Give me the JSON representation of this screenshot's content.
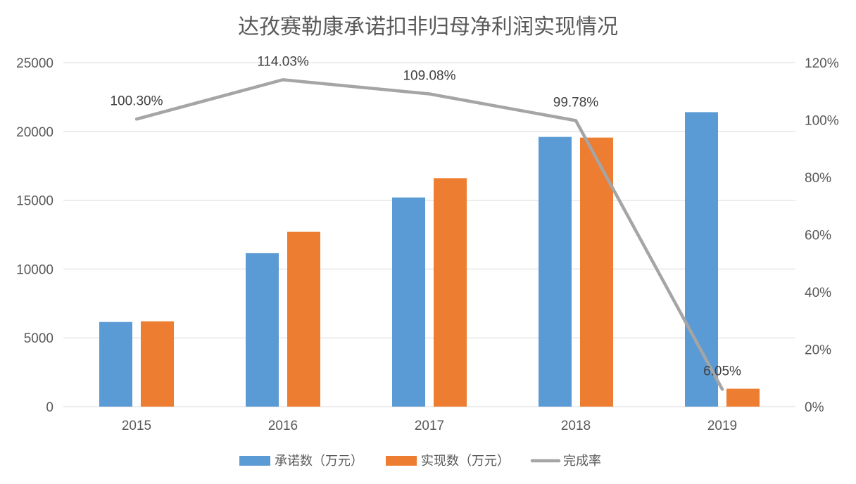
{
  "chart_data": {
    "type": "bar",
    "title": "达孜赛勒康承诺扣非归母净利润实现情况",
    "categories": [
      "2015",
      "2016",
      "2017",
      "2018",
      "2019"
    ],
    "series": [
      {
        "name": "承诺数（万元）",
        "type": "bar",
        "axis": "left",
        "color": "#5b9bd5",
        "values": [
          6150,
          11150,
          15200,
          19600,
          21400
        ]
      },
      {
        "name": "实现数（万元）",
        "type": "bar",
        "axis": "left",
        "color": "#ed7d31",
        "values": [
          6200,
          12700,
          16600,
          19550,
          1300
        ]
      },
      {
        "name": "完成率",
        "type": "line",
        "axis": "right",
        "color": "#a5a5a5",
        "values": [
          100.3,
          114.03,
          109.08,
          99.78,
          6.05
        ],
        "labels": [
          "100.30%",
          "114.03%",
          "109.08%",
          "99.78%",
          "6.05%"
        ]
      }
    ],
    "y_left": {
      "min": 0,
      "max": 25000,
      "step": 5000,
      "ticks": [
        "0",
        "5000",
        "10000",
        "15000",
        "20000",
        "25000"
      ]
    },
    "y_right": {
      "min": 0,
      "max": 120,
      "step": 20,
      "ticks": [
        "0%",
        "20%",
        "40%",
        "60%",
        "80%",
        "100%",
        "120%"
      ]
    },
    "grid": true,
    "legend_position": "bottom"
  }
}
